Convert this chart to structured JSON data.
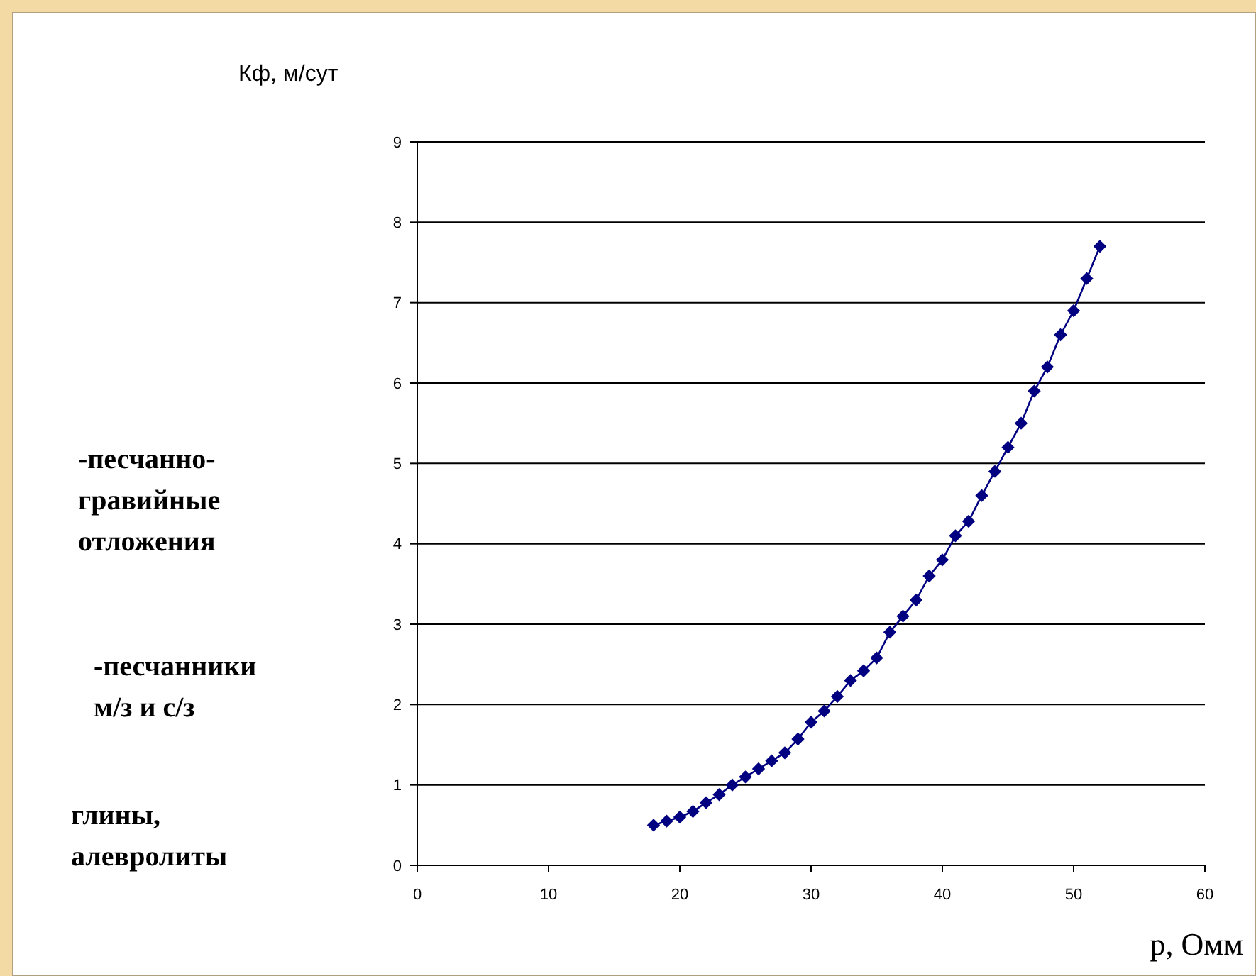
{
  "chart_data": {
    "type": "line",
    "ylabel": "Кф, м/сут",
    "xlabel": "р, Омм",
    "annotations": [
      "-песчанно-\nгравийные\nотложения",
      "-песчанники\nм/з и с/з",
      "глины,\nалевролиты"
    ],
    "x": [
      18,
      19,
      20,
      21,
      22,
      23,
      24,
      25,
      26,
      27,
      28,
      29,
      30,
      31,
      32,
      33,
      34,
      35,
      36,
      37,
      38,
      39,
      40,
      41,
      42,
      43,
      44,
      45,
      46,
      47,
      48,
      49,
      50,
      51,
      52
    ],
    "series": [
      {
        "color": "#000080",
        "values": [
          0.5,
          0.55,
          0.6,
          0.67,
          0.78,
          0.88,
          1.0,
          1.1,
          1.2,
          1.3,
          1.4,
          1.57,
          1.78,
          1.92,
          2.1,
          2.3,
          2.42,
          2.58,
          2.9,
          3.1,
          3.3,
          3.6,
          3.8,
          4.1,
          4.28,
          4.6,
          4.9,
          5.2,
          5.5,
          5.9,
          6.2,
          6.6,
          6.9,
          7.3,
          7.7
        ]
      }
    ],
    "xlim": [
      0,
      60
    ],
    "xticks": [
      0,
      10,
      20,
      30,
      40,
      50,
      60
    ],
    "ylim": [
      0,
      9
    ],
    "yticks": [
      0,
      1,
      2,
      3,
      4,
      5,
      6,
      7,
      8,
      9
    ],
    "grid": "y",
    "marker": "diamond",
    "line_style": "solid"
  }
}
